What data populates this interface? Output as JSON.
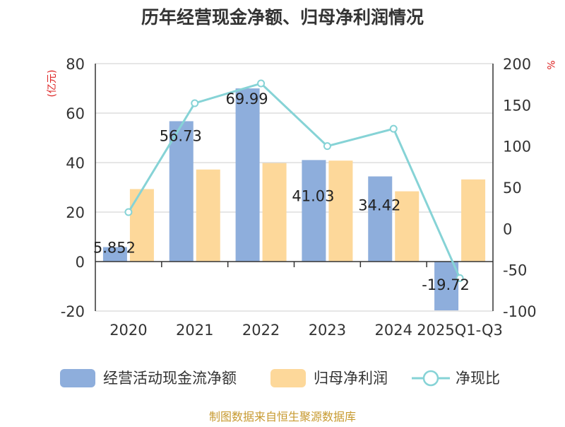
{
  "chart_data": {
    "type": "bar+line",
    "title": "历年经营现金净额、归母净利润情况",
    "left_axis_label": "(亿元)",
    "right_axis_label": "%",
    "categories": [
      "2020",
      "2021",
      "2022",
      "2023",
      "2024",
      "2025Q1-Q3"
    ],
    "y_left_range": [
      -20,
      80
    ],
    "y_left_ticks": [
      -20,
      0,
      20,
      40,
      60,
      80
    ],
    "y_right_range": [
      -100,
      200
    ],
    "y_right_ticks": [
      -100,
      -50,
      0,
      50,
      100,
      150,
      200
    ],
    "grid": true,
    "legend_position": "bottom",
    "series": [
      {
        "name": "经营活动现金流净额",
        "kind": "bar",
        "axis": "left",
        "color": "#8eaedc",
        "values": [
          5.852,
          56.73,
          69.99,
          41.03,
          34.42,
          -19.72
        ],
        "labels": [
          "5.852",
          "56.73",
          "69.99",
          "41.03",
          "34.42",
          "-19.72"
        ]
      },
      {
        "name": "归母净利润",
        "kind": "bar",
        "axis": "left",
        "color": "#fdd89a",
        "values": [
          29.3,
          37.2,
          39.8,
          40.8,
          28.4,
          33.2
        ]
      },
      {
        "name": "净现比",
        "kind": "line",
        "axis": "right",
        "color": "#86d3d6",
        "values": [
          20,
          152,
          176,
          100,
          121,
          -60
        ]
      }
    ]
  },
  "footer": {
    "source": "制图数据来自恒生聚源数据库"
  }
}
